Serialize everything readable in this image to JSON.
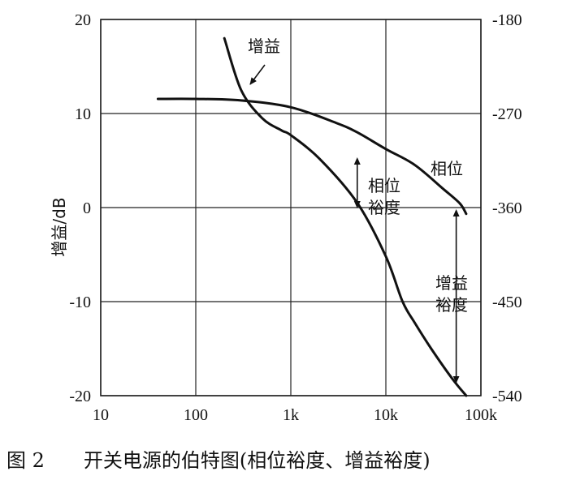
{
  "chart_data": {
    "type": "line",
    "x_scale": "log",
    "xlim": [
      10,
      100000
    ],
    "ylim": [
      -20,
      20
    ],
    "y2lim": [
      -540,
      -180
    ],
    "x_tick_labels": [
      "10",
      "100",
      "1k",
      "10k",
      "100k"
    ],
    "x_tick_values": [
      10,
      100,
      1000,
      10000,
      100000
    ],
    "y_tick_values": [
      20,
      10,
      0,
      -10,
      -20
    ],
    "y_tick_labels": [
      "20",
      "10",
      "0",
      "-10",
      "-20"
    ],
    "y2_tick_values": [
      -180,
      -270,
      -360,
      -450,
      -540
    ],
    "y2_tick_labels": [
      "-180",
      "-270",
      "-360",
      "-450",
      "-540"
    ],
    "ylabel": "增益/dB",
    "grid": true,
    "series": [
      {
        "name": "增益",
        "axis": "left",
        "x": [
          200,
          300,
          500,
          800,
          1000,
          2000,
          5000,
          10000,
          15000,
          20000,
          30000,
          50000,
          70000
        ],
        "y": [
          18,
          12.5,
          9.5,
          8.2,
          7.7,
          5.2,
          0.5,
          -5.2,
          -10,
          -12.2,
          -15,
          -18.2,
          -20
        ]
      },
      {
        "name": "相位",
        "axis": "right",
        "x": [
          40,
          100,
          300,
          1000,
          3000,
          5000,
          10000,
          20000,
          40000,
          60000,
          70000
        ],
        "y": [
          -256,
          -256,
          -257.5,
          -264,
          -279,
          -288,
          -304,
          -319,
          -342,
          -356,
          -366
        ]
      }
    ],
    "annotations": {
      "gain_label": "增益",
      "phase_label": "相位",
      "phase_margin_1": "相位",
      "phase_margin_2": "裕度",
      "gain_margin_1": "增益",
      "gain_margin_2": "裕度"
    }
  },
  "caption": {
    "figure": "图 2",
    "text": "开关电源的伯特图(相位裕度、增益裕度)"
  },
  "colors": {
    "line": "#111111",
    "grid": "#222222"
  }
}
